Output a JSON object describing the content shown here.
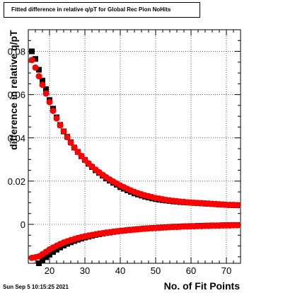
{
  "title": "Fitted difference in relative q/pT for Global Rec Pion NoHits",
  "footer": {
    "datestamp": "Sun Sep  5 10:15:25 2021"
  },
  "chart_data": {
    "type": "scatter",
    "title": "Fitted difference in relative q/pT for Global Rec Pion NoHits",
    "xlabel": "No. of Fit Points",
    "ylabel": "difference in relative q/pT",
    "xlim": [
      14,
      74
    ],
    "ylim": [
      -0.018,
      0.09
    ],
    "xticks": [
      20,
      30,
      40,
      50,
      60,
      70
    ],
    "yticks": [
      0,
      0.02,
      0.04,
      0.06,
      0.08
    ],
    "xtick_labels": [
      "20",
      "30",
      "40",
      "50",
      "60",
      "70"
    ],
    "ytick_labels": [
      "0",
      "0.02",
      "0.04",
      "0.06",
      "0.08"
    ],
    "grid": true,
    "series": [
      {
        "color": "#000000",
        "points": [
          [
            15,
            0.08
          ],
          [
            16,
            0.0765
          ],
          [
            17,
            0.0715
          ],
          [
            18,
            0.0665
          ],
          [
            19,
            0.0625
          ],
          [
            20,
            0.0575
          ],
          [
            21,
            0.0535
          ],
          [
            22,
            0.0495
          ],
          [
            23,
            0.046
          ],
          [
            24,
            0.043
          ],
          [
            25,
            0.0405
          ],
          [
            26,
            0.038
          ],
          [
            27,
            0.0355
          ],
          [
            28,
            0.0335
          ],
          [
            29,
            0.0315
          ],
          [
            30,
            0.0298
          ],
          [
            31,
            0.028
          ],
          [
            32,
            0.0265
          ],
          [
            33,
            0.025
          ],
          [
            34,
            0.0238
          ],
          [
            35,
            0.0225
          ],
          [
            36,
            0.0212
          ],
          [
            37,
            0.0202
          ],
          [
            38,
            0.0192
          ],
          [
            39,
            0.0183
          ],
          [
            40,
            0.0172
          ],
          [
            41,
            0.0165
          ],
          [
            42,
            0.0157
          ],
          [
            43,
            0.015
          ],
          [
            44,
            0.0143
          ],
          [
            45,
            0.0138
          ],
          [
            46,
            0.0133
          ],
          [
            47,
            0.0128
          ],
          [
            48,
            0.0124
          ],
          [
            49,
            0.012
          ],
          [
            50,
            0.0117
          ],
          [
            51,
            0.0114
          ],
          [
            52,
            0.0112
          ],
          [
            53,
            0.011
          ],
          [
            54,
            0.0108
          ],
          [
            55,
            0.0106
          ],
          [
            56,
            0.0105
          ],
          [
            57,
            0.0103
          ],
          [
            58,
            0.0102
          ],
          [
            59,
            0.0101
          ],
          [
            60,
            0.01
          ],
          [
            61,
            0.0099
          ],
          [
            62,
            0.0098
          ],
          [
            63,
            0.0097
          ],
          [
            64,
            0.0096
          ],
          [
            65,
            0.0095
          ],
          [
            66,
            0.0094
          ],
          [
            67,
            0.0093
          ],
          [
            68,
            0.0092
          ],
          [
            69,
            0.0091
          ],
          [
            70,
            0.009
          ],
          [
            71,
            0.0089
          ],
          [
            72,
            0.0089
          ],
          [
            73,
            0.0088
          ],
          [
            17,
            -0.018
          ],
          [
            18,
            -0.0165
          ],
          [
            19,
            -0.0152
          ],
          [
            20,
            -0.014
          ],
          [
            21,
            -0.0128
          ],
          [
            22,
            -0.0117
          ],
          [
            23,
            -0.0107
          ],
          [
            24,
            -0.0098
          ],
          [
            25,
            -0.009
          ],
          [
            26,
            -0.0083
          ],
          [
            27,
            -0.0077
          ],
          [
            28,
            -0.0071
          ],
          [
            29,
            -0.0066
          ],
          [
            30,
            -0.0061
          ],
          [
            31,
            -0.0057
          ],
          [
            32,
            -0.0053
          ],
          [
            33,
            -0.0049
          ],
          [
            34,
            -0.0046
          ],
          [
            35,
            -0.0043
          ],
          [
            36,
            -0.004
          ],
          [
            37,
            -0.0038
          ],
          [
            38,
            -0.0035
          ],
          [
            39,
            -0.0033
          ],
          [
            40,
            -0.0031
          ],
          [
            41,
            -0.0029
          ],
          [
            42,
            -0.0027
          ],
          [
            43,
            -0.0025
          ],
          [
            44,
            -0.0024
          ],
          [
            45,
            -0.0022
          ],
          [
            46,
            -0.0021
          ],
          [
            47,
            -0.0019
          ],
          [
            48,
            -0.0018
          ],
          [
            49,
            -0.0017
          ],
          [
            50,
            -0.0016
          ],
          [
            51,
            -0.0015
          ],
          [
            52,
            -0.0014
          ],
          [
            53,
            -0.0013
          ],
          [
            54,
            -0.0012
          ],
          [
            55,
            -0.0011
          ],
          [
            56,
            -0.0011
          ],
          [
            57,
            -0.001
          ],
          [
            58,
            -0.0009
          ],
          [
            59,
            -0.0009
          ],
          [
            60,
            -0.0008
          ],
          [
            61,
            -0.0008
          ],
          [
            62,
            -0.0007
          ],
          [
            63,
            -0.0007
          ],
          [
            64,
            -0.0006
          ],
          [
            65,
            -0.0006
          ],
          [
            66,
            -0.0005
          ],
          [
            67,
            -0.0005
          ],
          [
            68,
            -0.0005
          ],
          [
            69,
            -0.0004
          ],
          [
            70,
            -0.0004
          ],
          [
            71,
            -0.0004
          ],
          [
            72,
            -0.0003
          ],
          [
            73,
            -0.0003
          ]
        ]
      },
      {
        "color": "#ff0000",
        "points": [
          [
            15,
            0.076
          ],
          [
            16,
            0.0725
          ],
          [
            17,
            0.0685
          ],
          [
            18,
            0.0645
          ],
          [
            19,
            0.0605
          ],
          [
            20,
            0.0565
          ],
          [
            21,
            0.0525
          ],
          [
            22,
            0.049
          ],
          [
            23,
            0.0458
          ],
          [
            24,
            0.043
          ],
          [
            25,
            0.0403
          ],
          [
            26,
            0.0378
          ],
          [
            27,
            0.0355
          ],
          [
            28,
            0.0335
          ],
          [
            29,
            0.0316
          ],
          [
            30,
            0.0298
          ],
          [
            31,
            0.0282
          ],
          [
            32,
            0.0267
          ],
          [
            33,
            0.0253
          ],
          [
            34,
            0.0241
          ],
          [
            35,
            0.0229
          ],
          [
            36,
            0.0218
          ],
          [
            37,
            0.0208
          ],
          [
            38,
            0.0198
          ],
          [
            39,
            0.0189
          ],
          [
            40,
            0.018
          ],
          [
            41,
            0.0172
          ],
          [
            42,
            0.0164
          ],
          [
            43,
            0.0157
          ],
          [
            44,
            0.015
          ],
          [
            45,
            0.0144
          ],
          [
            46,
            0.0139
          ],
          [
            47,
            0.0134
          ],
          [
            48,
            0.013
          ],
          [
            49,
            0.0126
          ],
          [
            50,
            0.0122
          ],
          [
            51,
            0.0119
          ],
          [
            52,
            0.0116
          ],
          [
            53,
            0.0113
          ],
          [
            54,
            0.0111
          ],
          [
            55,
            0.0109
          ],
          [
            56,
            0.0107
          ],
          [
            57,
            0.0105
          ],
          [
            58,
            0.0104
          ],
          [
            59,
            0.0102
          ],
          [
            60,
            0.0101
          ],
          [
            61,
            0.01
          ],
          [
            62,
            0.0099
          ],
          [
            63,
            0.0098
          ],
          [
            64,
            0.0097
          ],
          [
            65,
            0.0096
          ],
          [
            66,
            0.0095
          ],
          [
            67,
            0.0094
          ],
          [
            68,
            0.0093
          ],
          [
            69,
            0.0092
          ],
          [
            70,
            0.0091
          ],
          [
            71,
            0.009
          ],
          [
            72,
            0.009
          ],
          [
            73,
            0.0089
          ],
          [
            15,
            -0.0155
          ],
          [
            16,
            -0.0152
          ],
          [
            17,
            -0.0148
          ],
          [
            18,
            -0.0138
          ],
          [
            19,
            -0.0127
          ],
          [
            20,
            -0.0116
          ],
          [
            21,
            -0.0107
          ],
          [
            22,
            -0.0099
          ],
          [
            23,
            -0.0091
          ],
          [
            24,
            -0.0084
          ],
          [
            25,
            -0.0078
          ],
          [
            26,
            -0.0073
          ],
          [
            27,
            -0.0068
          ],
          [
            28,
            -0.0063
          ],
          [
            29,
            -0.0059
          ],
          [
            30,
            -0.0055
          ],
          [
            31,
            -0.0052
          ],
          [
            32,
            -0.0049
          ],
          [
            33,
            -0.0046
          ],
          [
            34,
            -0.0043
          ],
          [
            35,
            -0.0041
          ],
          [
            36,
            -0.0038
          ],
          [
            37,
            -0.0036
          ],
          [
            38,
            -0.0034
          ],
          [
            39,
            -0.0032
          ],
          [
            40,
            -0.003
          ],
          [
            41,
            -0.0029
          ],
          [
            42,
            -0.0027
          ],
          [
            43,
            -0.0026
          ],
          [
            44,
            -0.0024
          ],
          [
            45,
            -0.0023
          ],
          [
            46,
            -0.0021
          ],
          [
            47,
            -0.002
          ],
          [
            48,
            -0.0019
          ],
          [
            49,
            -0.0018
          ],
          [
            50,
            -0.0017
          ],
          [
            51,
            -0.0016
          ],
          [
            52,
            -0.0015
          ],
          [
            53,
            -0.0014
          ],
          [
            54,
            -0.0013
          ],
          [
            55,
            -0.0012
          ],
          [
            56,
            -0.0012
          ],
          [
            57,
            -0.0011
          ],
          [
            58,
            -0.001
          ],
          [
            59,
            -0.001
          ],
          [
            60,
            -0.0009
          ],
          [
            61,
            -0.0009
          ],
          [
            62,
            -0.0008
          ],
          [
            63,
            -0.0008
          ],
          [
            64,
            -0.0007
          ],
          [
            65,
            -0.0007
          ],
          [
            66,
            -0.0006
          ],
          [
            67,
            -0.0006
          ],
          [
            68,
            -0.0006
          ],
          [
            69,
            -0.0005
          ],
          [
            70,
            -0.0005
          ],
          [
            71,
            -0.0005
          ],
          [
            72,
            -0.0004
          ],
          [
            73,
            -0.0004
          ]
        ]
      }
    ]
  }
}
